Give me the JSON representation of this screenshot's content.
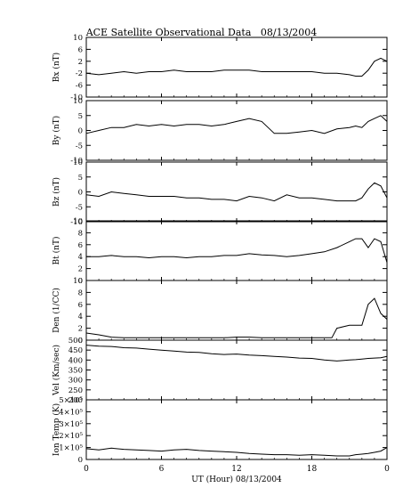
{
  "chart_data": {
    "type": "line",
    "title": "ACE Satellite Observational Data   08/13/2004",
    "xlabel": "UT (Hour)   08/13/2004",
    "x_ticks": [
      "0",
      "6",
      "12",
      "18",
      "0"
    ],
    "xlim": [
      0,
      24
    ],
    "grid": false,
    "panels": [
      {
        "name": "bx",
        "ylabel": "Bx (nT)",
        "ylim": [
          -10,
          10
        ],
        "y_ticks": [
          -10,
          -6,
          -2,
          2,
          6,
          10
        ],
        "y_tick_labels": [
          "-10",
          "-6",
          "-2",
          "2",
          "6",
          "10"
        ],
        "x": [
          0,
          1,
          2,
          3,
          4,
          5,
          6,
          7,
          8,
          9,
          10,
          11,
          12,
          13,
          14,
          15,
          16,
          17,
          18,
          19,
          20,
          21,
          21.5,
          22,
          22.5,
          23,
          23.5,
          24
        ],
        "y": [
          -2,
          -2.5,
          -2,
          -1.5,
          -2,
          -1.5,
          -1.5,
          -1,
          -1.5,
          -1.5,
          -1.5,
          -1,
          -1,
          -1,
          -1.5,
          -1.5,
          -1.5,
          -1.5,
          -1.5,
          -2,
          -2,
          -2.5,
          -3,
          -3,
          -1,
          2,
          3,
          2
        ]
      },
      {
        "name": "by",
        "ylabel": "By (nT)",
        "ylim": [
          -10,
          10
        ],
        "y_ticks": [
          -10,
          -5,
          0,
          5,
          10
        ],
        "y_tick_labels": [
          "-10",
          "-5",
          "0",
          "5",
          "10"
        ],
        "x": [
          0,
          1,
          2,
          3,
          4,
          5,
          6,
          7,
          8,
          9,
          10,
          11,
          12,
          13,
          14,
          15,
          16,
          17,
          18,
          19,
          20,
          21,
          21.5,
          22,
          22.5,
          23,
          23.5,
          24
        ],
        "y": [
          -1,
          0,
          1,
          1,
          2,
          1.5,
          2,
          1.5,
          2,
          2,
          1.5,
          2,
          3,
          4,
          3,
          -1,
          -1,
          -0.5,
          0,
          -1,
          0.5,
          1,
          1.5,
          1,
          3,
          4,
          5,
          3
        ]
      },
      {
        "name": "bz",
        "ylabel": "Bz (nT)",
        "ylim": [
          -10,
          10
        ],
        "y_ticks": [
          -10,
          -5,
          0,
          5,
          10
        ],
        "y_tick_labels": [
          "-10",
          "-5",
          "0",
          "5",
          "10"
        ],
        "x": [
          0,
          1,
          2,
          3,
          4,
          5,
          6,
          7,
          8,
          9,
          10,
          11,
          12,
          13,
          14,
          15,
          16,
          17,
          18,
          19,
          20,
          21,
          21.5,
          22,
          22.5,
          23,
          23.5,
          24
        ],
        "y": [
          -1,
          -1.5,
          0,
          -0.5,
          -1,
          -1.5,
          -1.5,
          -1.5,
          -2,
          -2,
          -2.5,
          -2.5,
          -3,
          -1.5,
          -2,
          -3,
          -1,
          -2,
          -2,
          -2.5,
          -3,
          -3,
          -3,
          -2,
          1,
          3,
          2,
          -2
        ]
      },
      {
        "name": "bt",
        "ylabel": "Bt (nT)",
        "ylim": [
          0,
          10
        ],
        "y_ticks": [
          0,
          2,
          4,
          6,
          8,
          10
        ],
        "y_tick_labels": [
          "0",
          "2",
          "4",
          "6",
          "8",
          "10"
        ],
        "x": [
          0,
          1,
          2,
          3,
          4,
          5,
          6,
          7,
          8,
          9,
          10,
          11,
          12,
          13,
          14,
          15,
          16,
          17,
          18,
          19,
          20,
          21,
          21.5,
          22,
          22.5,
          23,
          23.5,
          24
        ],
        "y": [
          4,
          4,
          4.2,
          4,
          4,
          3.8,
          4,
          4,
          3.8,
          4,
          4,
          4.2,
          4.2,
          4.5,
          4.3,
          4.2,
          4,
          4.2,
          4.5,
          4.8,
          5.5,
          6.5,
          7,
          7,
          5.5,
          7,
          6.5,
          3
        ]
      },
      {
        "name": "den",
        "ylabel": "Den (1/CC)",
        "ylim": [
          0,
          10
        ],
        "y_ticks": [
          0,
          2,
          4,
          6,
          8,
          10
        ],
        "y_tick_labels": [
          "0",
          "2",
          "4",
          "6",
          "8",
          "10"
        ],
        "x": [
          0,
          1,
          2,
          3,
          4,
          5,
          6,
          7,
          8,
          9,
          10,
          11,
          12,
          13,
          14,
          15,
          16,
          17,
          18,
          19,
          19.6,
          20,
          21,
          22,
          22.5,
          23,
          23.5,
          24
        ],
        "y": [
          1.2,
          0.9,
          0.5,
          0.4,
          0.4,
          0.4,
          0.4,
          0.4,
          0.4,
          0.4,
          0.4,
          0.4,
          0.5,
          0.5,
          0.4,
          0.4,
          0.4,
          0.4,
          0.4,
          0.4,
          0.4,
          2,
          2.5,
          2.5,
          6,
          7,
          4.5,
          3.5
        ]
      },
      {
        "name": "vel",
        "ylabel": "Vel (Km/sec)",
        "ylim": [
          200,
          500
        ],
        "y_ticks": [
          200,
          250,
          300,
          350,
          400,
          450,
          500
        ],
        "y_tick_labels": [
          "200",
          "250",
          "300",
          "350",
          "400",
          "450",
          "500"
        ],
        "x": [
          0,
          1,
          2,
          3,
          4,
          5,
          6,
          7,
          8,
          9,
          10,
          11,
          12,
          13,
          14,
          15,
          16,
          17,
          18,
          19,
          20,
          21,
          21.5,
          22,
          22.5,
          23,
          23.5,
          24
        ],
        "y": [
          475,
          470,
          468,
          462,
          460,
          455,
          450,
          445,
          440,
          438,
          432,
          428,
          430,
          425,
          422,
          418,
          415,
          410,
          408,
          400,
          395,
          400,
          402,
          405,
          408,
          410,
          412,
          418
        ]
      },
      {
        "name": "temp",
        "ylabel": "Ion Temp (K)",
        "ylim": [
          0,
          500000
        ],
        "y_ticks": [
          0,
          100000,
          200000,
          300000,
          400000,
          500000
        ],
        "y_tick_labels": [
          "0",
          "1×10⁵",
          "2×10⁵",
          "3×10⁵",
          "4×10⁵",
          "5×10⁵"
        ],
        "x": [
          0,
          1,
          2,
          3,
          4,
          5,
          6,
          7,
          8,
          9,
          10,
          11,
          12,
          13,
          14,
          15,
          16,
          17,
          18,
          19,
          20,
          21,
          21.5,
          22,
          22.5,
          23,
          23.5,
          24
        ],
        "y": [
          90000,
          80000,
          95000,
          85000,
          80000,
          75000,
          70000,
          80000,
          85000,
          75000,
          70000,
          65000,
          60000,
          50000,
          45000,
          40000,
          40000,
          35000,
          40000,
          35000,
          30000,
          30000,
          40000,
          45000,
          50000,
          60000,
          70000,
          100000
        ]
      }
    ]
  }
}
